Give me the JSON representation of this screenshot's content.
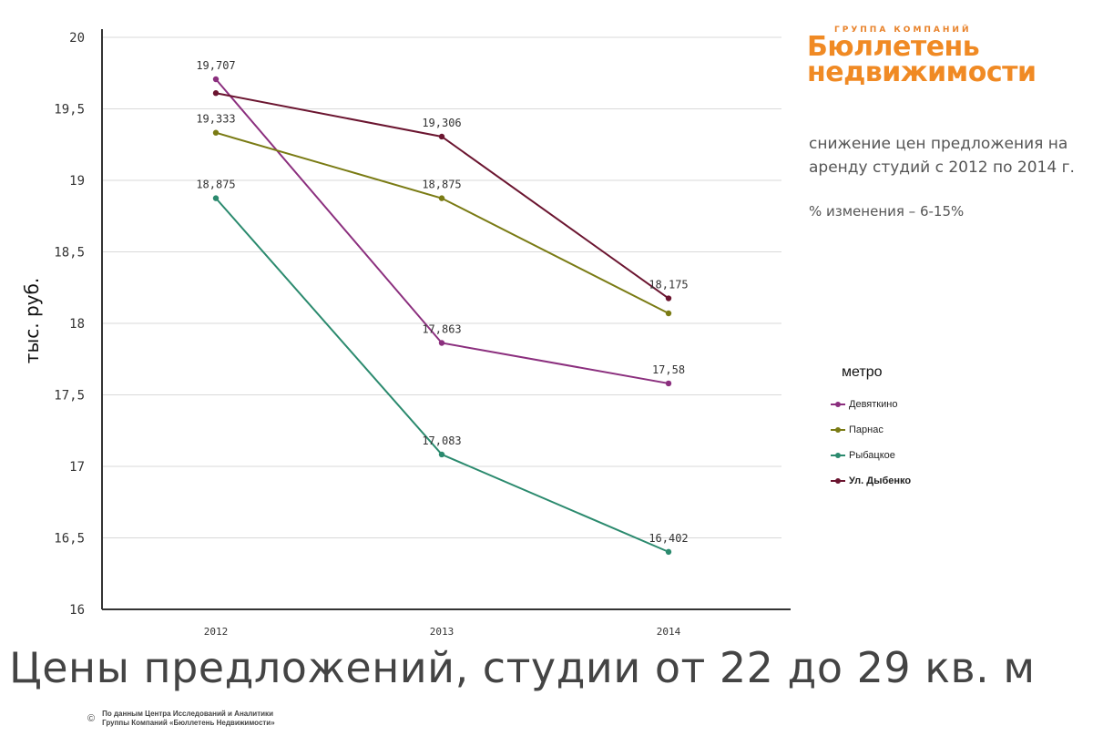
{
  "chart_data": {
    "type": "line",
    "categories": [
      "2012",
      "2013",
      "2014"
    ],
    "ylabel": "тыс. руб.",
    "ylim": [
      16,
      20
    ],
    "yticks": [
      "16",
      "16,5",
      "17",
      "17,5",
      "18",
      "18,5",
      "19",
      "19,5",
      "20"
    ],
    "grid": true,
    "legend_title": "метро",
    "legend_position": "right",
    "series": [
      {
        "name": "Девяткино",
        "color": "#8b2f7e",
        "values": [
          19.707,
          17.863,
          17.58
        ],
        "labels": [
          "19,707",
          "17,863",
          "17,58"
        ]
      },
      {
        "name": "Парнас",
        "color": "#7a7b14",
        "values": [
          19.333,
          18.875,
          18.07
        ],
        "labels": [
          "19,333",
          "18,875",
          ""
        ]
      },
      {
        "name": "Рыбацкое",
        "color": "#2b8a6e",
        "values": [
          18.875,
          17.083,
          16.402
        ],
        "labels": [
          "18,875",
          "17,083",
          "16,402"
        ]
      },
      {
        "name": "Ул. Дыбенко",
        "color": "#6b1530",
        "values": [
          19.61,
          19.306,
          18.175
        ],
        "labels": [
          "",
          "19,306",
          "18,175"
        ]
      }
    ]
  },
  "logo": {
    "top_text": "ГРУППА КОМПАНИЙ",
    "line1": "Бюллетень",
    "line2": "недвижимости"
  },
  "note": {
    "text": "снижение цен предложения на аренду студий с 2012 по 2014 г.",
    "change": "% изменения – 6-15%"
  },
  "title": "Цены предложений, студии от 22 до 29 кв. м",
  "footer": {
    "copyright": "©",
    "line1": "По данным Центра Исследований и Аналитики",
    "line2": "Группы Компаний «Бюллетень Недвижимости»"
  }
}
